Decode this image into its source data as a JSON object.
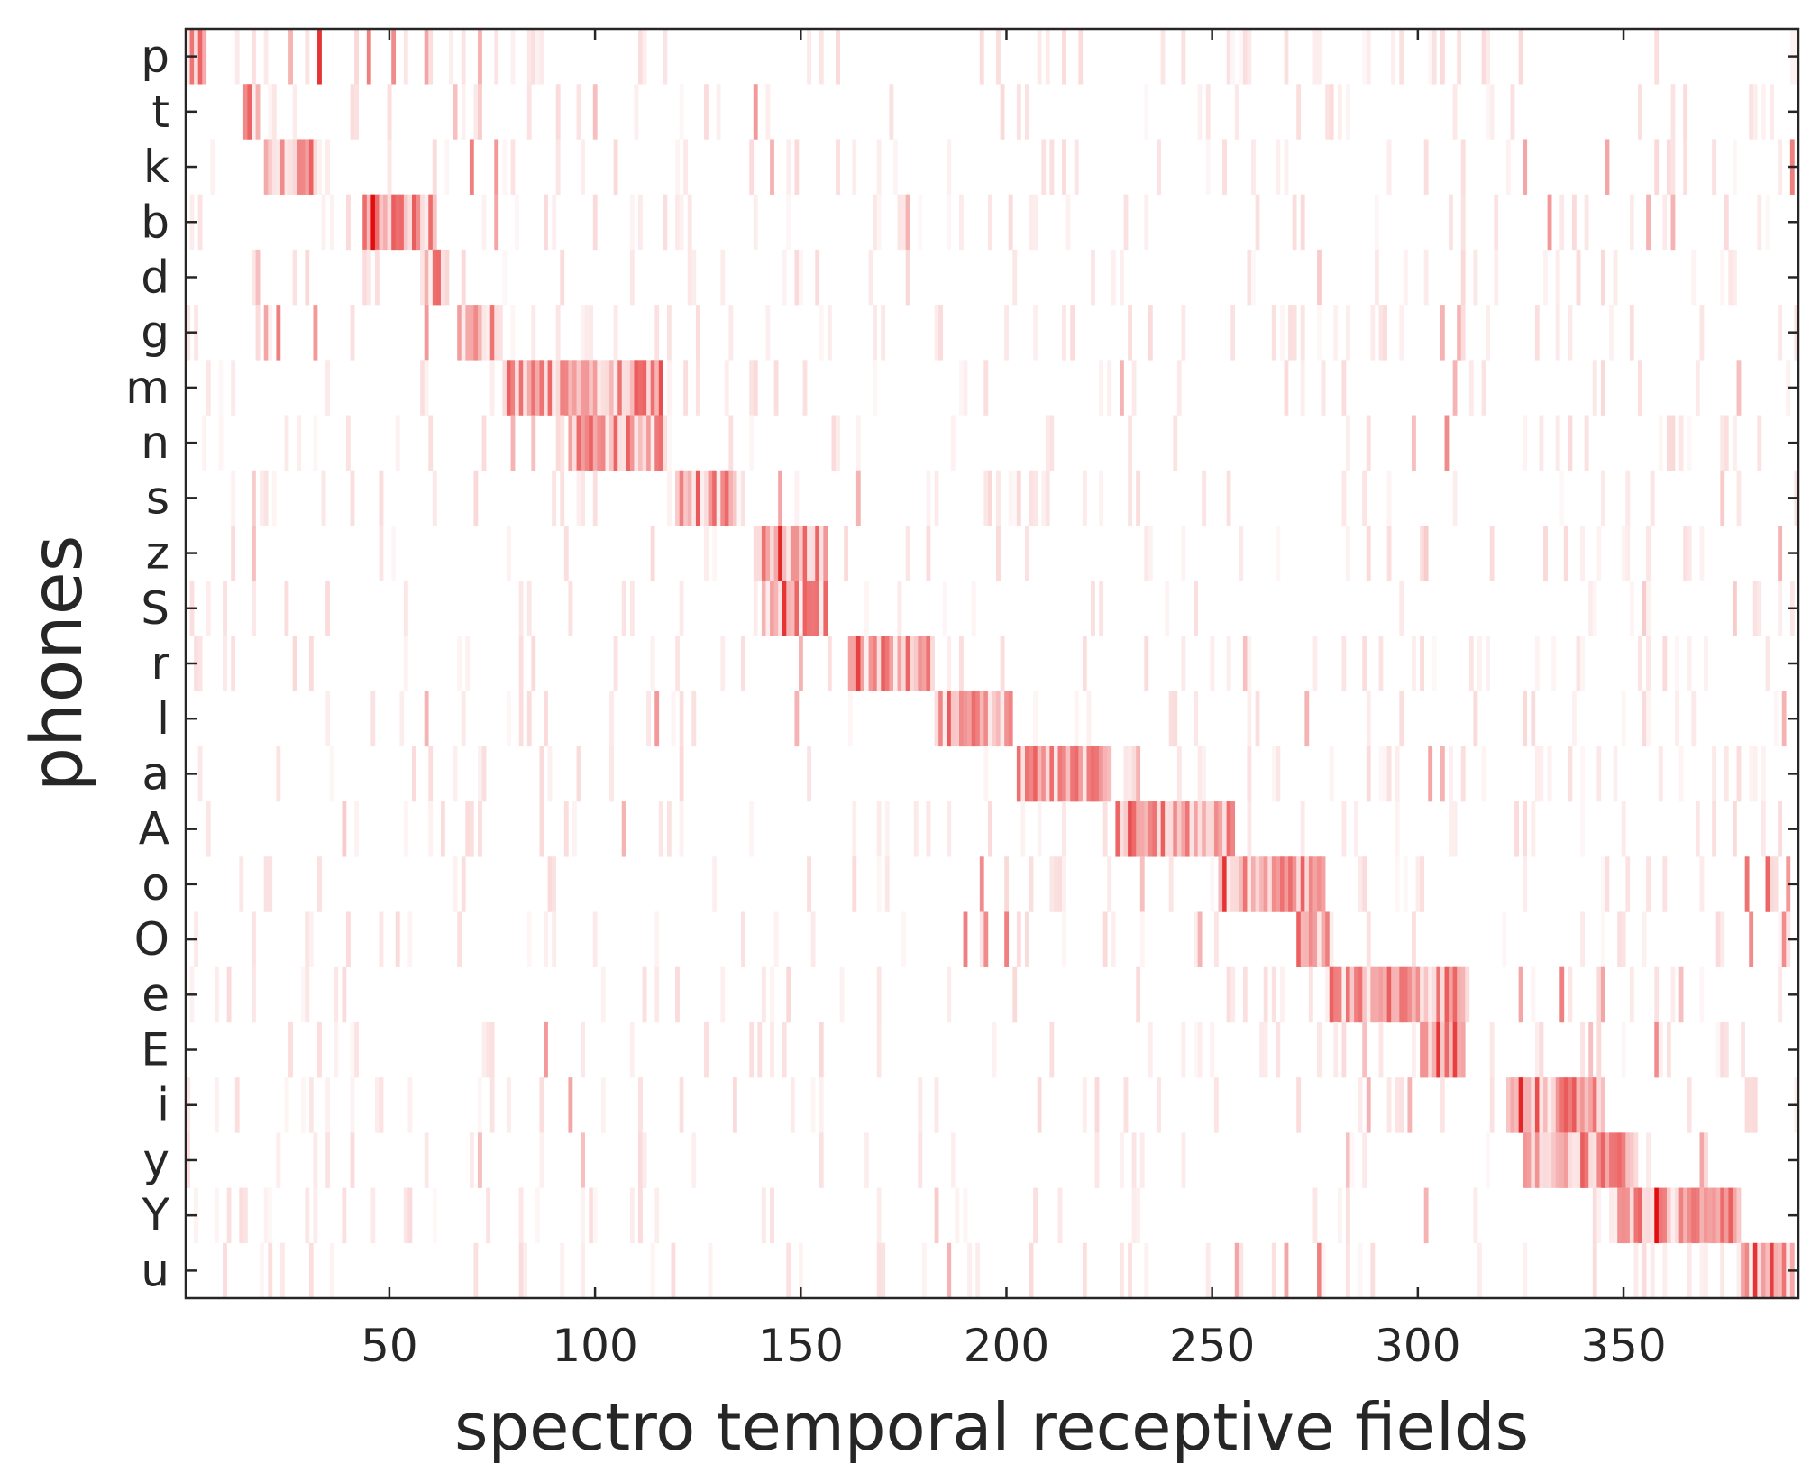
{
  "chart_data": {
    "type": "heatmap",
    "xlabel": "spectro temporal receptive fields",
    "ylabel": "phones",
    "xlim": [
      1,
      392
    ],
    "x_ticks": [
      50,
      100,
      150,
      200,
      250,
      300,
      350
    ],
    "x_tick_labels": [
      "50",
      "100",
      "150",
      "200",
      "250",
      "300",
      "350"
    ],
    "categories": [
      "p",
      "t",
      "k",
      "b",
      "d",
      "g",
      "m",
      "n",
      "s",
      "z",
      "S",
      "r",
      "l",
      "a",
      "A",
      "o",
      "O",
      "e",
      "E",
      "i",
      "y",
      "Y",
      "u"
    ],
    "colormap": {
      "low": "#ffffff",
      "high": "#e00000"
    },
    "series": [
      {
        "name": "p",
        "range": [
          1,
          5
        ],
        "stripes": [
          [
            33,
            0.8
          ],
          [
            45,
            0.5
          ],
          [
            51,
            0.45
          ],
          [
            59,
            0.35
          ],
          [
            72,
            0.3
          ],
          [
            26,
            0.3
          ]
        ]
      },
      {
        "name": "t",
        "range": [
          15,
          18
        ],
        "stripes": [
          [
            139,
            0.4
          ],
          [
            100,
            0.25
          ],
          [
            66,
            0.25
          ],
          [
            72,
            0.2
          ]
        ]
      },
      {
        "name": "k",
        "range": [
          20,
          33
        ],
        "stripes": [
          [
            70,
            0.5
          ],
          [
            76,
            0.4
          ],
          [
            391,
            0.5
          ],
          [
            326,
            0.35
          ],
          [
            346,
            0.35
          ],
          [
            143,
            0.3
          ]
        ]
      },
      {
        "name": "b",
        "range": [
          44,
          61
        ],
        "stripes": [
          [
            46,
            0.95
          ],
          [
            51,
            0.6
          ],
          [
            57,
            0.45
          ],
          [
            76,
            0.35
          ],
          [
            332,
            0.4
          ],
          [
            356,
            0.3
          ],
          [
            362,
            0.3
          ],
          [
            176,
            0.3
          ]
        ]
      },
      {
        "name": "d",
        "range": [
          58,
          64
        ],
        "stripes": [
          [
            18,
            0.25
          ],
          [
            276,
            0.2
          ],
          [
            176,
            0.15
          ]
        ]
      },
      {
        "name": "g",
        "range": [
          67,
          77
        ],
        "stripes": [
          [
            20,
            0.35
          ],
          [
            23,
            0.5
          ],
          [
            32,
            0.4
          ],
          [
            59,
            0.4
          ],
          [
            306,
            0.3
          ],
          [
            310,
            0.3
          ]
        ]
      },
      {
        "name": "m",
        "range": [
          79,
          116
        ],
        "stripes": [
          [
            116,
            0.7
          ],
          [
            87,
            0.55
          ],
          [
            80,
            0.5
          ],
          [
            228,
            0.3
          ],
          [
            309,
            0.3
          ],
          [
            378,
            0.25
          ]
        ]
      },
      {
        "name": "n",
        "range": [
          94,
          117
        ],
        "stripes": [
          [
            80,
            0.3
          ],
          [
            85,
            0.25
          ],
          [
            307,
            0.45
          ],
          [
            299,
            0.25
          ]
        ]
      },
      {
        "name": "s",
        "range": [
          120,
          134
        ],
        "stripes": [
          [
            125,
            0.55
          ],
          [
            132,
            0.45
          ],
          [
            145,
            0.35
          ],
          [
            164,
            0.3
          ],
          [
            17,
            0.2
          ],
          [
            374,
            0.2
          ]
        ]
      },
      {
        "name": "z",
        "range": [
          139,
          156
        ],
        "stripes": [
          [
            145,
            0.85
          ],
          [
            141,
            0.55
          ],
          [
            17,
            0.25
          ],
          [
            302,
            0.2
          ],
          [
            388,
            0.3
          ]
        ]
      },
      {
        "name": "S",
        "range": [
          141,
          156
        ],
        "stripes": [
          [
            146,
            0.8
          ],
          [
            149,
            0.6
          ],
          [
            355,
            0.2
          ],
          [
            377,
            0.2
          ]
        ]
      },
      {
        "name": "r",
        "range": [
          162,
          182
        ],
        "stripes": [
          [
            164,
            0.75
          ],
          [
            168,
            0.5
          ],
          [
            176,
            0.45
          ],
          [
            150,
            0.3
          ],
          [
            258,
            0.25
          ]
        ]
      },
      {
        "name": "l",
        "range": [
          183,
          201
        ],
        "stripes": [
          [
            186,
            0.5
          ],
          [
            193,
            0.5
          ],
          [
            115,
            0.4
          ],
          [
            59,
            0.3
          ],
          [
            149,
            0.3
          ],
          [
            273,
            0.3
          ],
          [
            389,
            0.3
          ]
        ]
      },
      {
        "name": "a",
        "range": [
          203,
          225
        ],
        "stripes": [
          [
            205,
            0.55
          ],
          [
            211,
            0.5
          ],
          [
            220,
            0.45
          ],
          [
            303,
            0.35
          ],
          [
            306,
            0.3
          ],
          [
            232,
            0.3
          ]
        ]
      },
      {
        "name": "A",
        "range": [
          227,
          255
        ],
        "stripes": [
          [
            230,
            0.7
          ],
          [
            236,
            0.55
          ],
          [
            241,
            0.45
          ],
          [
            251,
            0.45
          ],
          [
            107,
            0.3
          ],
          [
            39,
            0.2
          ]
        ]
      },
      {
        "name": "o",
        "range": [
          252,
          277
        ],
        "stripes": [
          [
            253,
            0.8
          ],
          [
            258,
            0.55
          ],
          [
            194,
            0.45
          ],
          [
            380,
            0.55
          ],
          [
            385,
            0.6
          ],
          [
            390,
            0.4
          ],
          [
            233,
            0.25
          ]
        ]
      },
      {
        "name": "O",
        "range": [
          271,
          279
        ],
        "stripes": [
          [
            190,
            0.5
          ],
          [
            195,
            0.45
          ],
          [
            200,
            0.5
          ],
          [
            247,
            0.3
          ],
          [
            381,
            0.45
          ],
          [
            389,
            0.45
          ]
        ]
      },
      {
        "name": "e",
        "range": [
          278,
          311
        ],
        "stripes": [
          [
            280,
            0.5
          ],
          [
            309,
            0.6
          ],
          [
            335,
            0.5
          ],
          [
            325,
            0.35
          ],
          [
            345,
            0.35
          ],
          [
            364,
            0.25
          ]
        ]
      },
      {
        "name": "E",
        "range": [
          301,
          311
        ],
        "stripes": [
          [
            305,
            0.8
          ],
          [
            309,
            0.75
          ],
          [
            88,
            0.4
          ],
          [
            358,
            0.45
          ],
          [
            342,
            0.25
          ],
          [
            287,
            0.25
          ]
        ]
      },
      {
        "name": "i",
        "range": [
          322,
          345
        ],
        "stripes": [
          [
            325,
            0.85
          ],
          [
            329,
            0.7
          ],
          [
            335,
            0.55
          ],
          [
            94,
            0.35
          ],
          [
            298,
            0.3
          ],
          [
            288,
            0.3
          ]
        ]
      },
      {
        "name": "y",
        "range": [
          326,
          352
        ],
        "stripes": [
          [
            348,
            0.55
          ],
          [
            369,
            0.35
          ],
          [
            283,
            0.25
          ],
          [
            72,
            0.25
          ],
          [
            97,
            0.25
          ]
        ]
      },
      {
        "name": "Y",
        "range": [
          348,
          378
        ],
        "stripes": [
          [
            358,
            0.95
          ],
          [
            354,
            0.6
          ],
          [
            366,
            0.45
          ],
          [
            372,
            0.4
          ],
          [
            302,
            0.3
          ],
          [
            183,
            0.2
          ]
        ]
      },
      {
        "name": "u",
        "range": [
          378,
          391
        ],
        "stripes": [
          [
            382,
            0.8
          ],
          [
            386,
            0.75
          ],
          [
            389,
            0.55
          ],
          [
            276,
            0.5
          ],
          [
            268,
            0.35
          ],
          [
            256,
            0.35
          ],
          [
            186,
            0.3
          ]
        ]
      }
    ]
  }
}
